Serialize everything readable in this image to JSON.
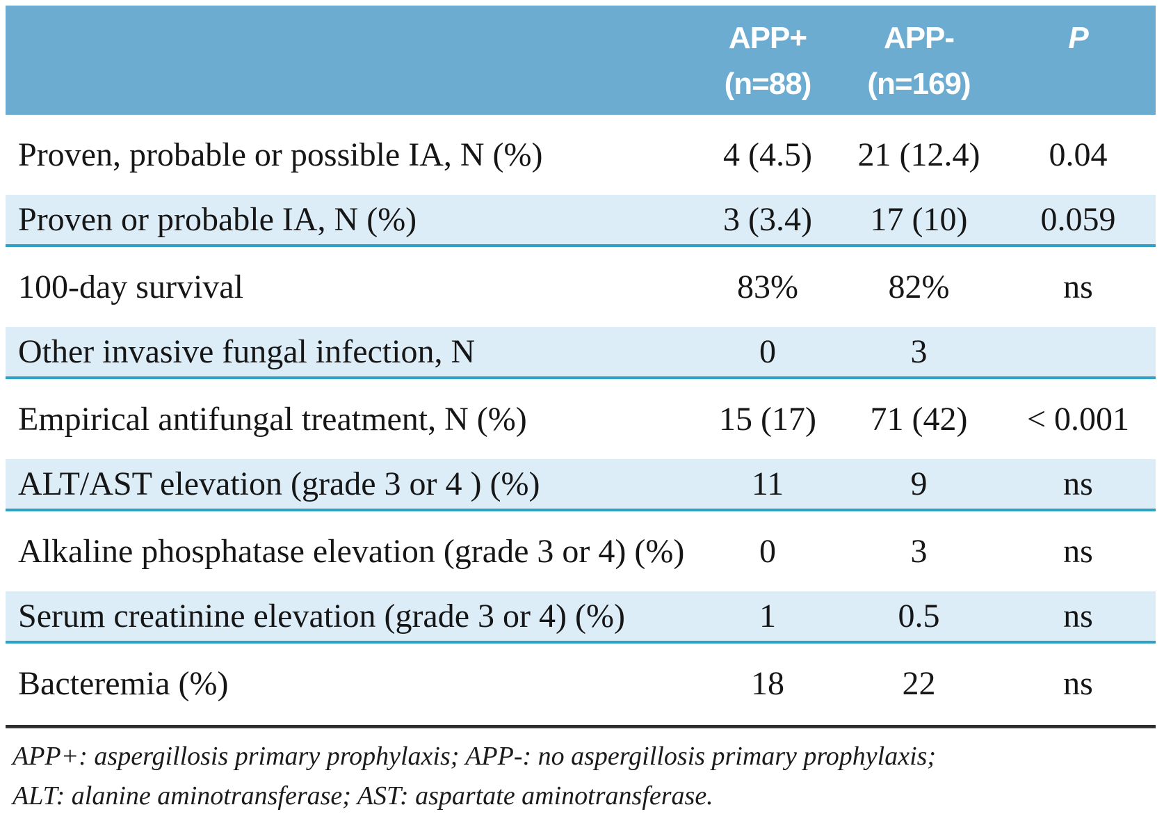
{
  "table": {
    "columns": {
      "app_plus": {
        "line1": "APP+",
        "line2": "(n=88)"
      },
      "app_minus": {
        "line1": "APP-",
        "line2": "(n=169)"
      },
      "p": "P"
    },
    "rows": [
      {
        "label": "Proven, probable or possible IA, N (%)",
        "app_plus": "4 (4.5)",
        "app_minus": "21 (12.4)",
        "p": "0.04"
      },
      {
        "label": "Proven or probable IA, N (%)",
        "app_plus": "3 (3.4)",
        "app_minus": "17 (10)",
        "p": "0.059"
      },
      {
        "label": "100-day survival",
        "app_plus": "83%",
        "app_minus": "82%",
        "p": "ns"
      },
      {
        "label": "Other invasive fungal infection, N",
        "app_plus": "0",
        "app_minus": "3",
        "p": ""
      },
      {
        "label": "Empirical antifungal treatment, N (%)",
        "app_plus": "15 (17)",
        "app_minus": "71 (42)",
        "p": "< 0.001"
      },
      {
        "label": "ALT/AST elevation (grade 3 or 4 ) (%)",
        "app_plus": "11",
        "app_minus": "9",
        "p": "ns"
      },
      {
        "label": "Alkaline phosphatase elevation (grade 3 or 4) (%)",
        "app_plus": "0",
        "app_minus": "3",
        "p": "ns"
      },
      {
        "label": "Serum creatinine elevation (grade 3 or 4) (%)",
        "app_plus": "1",
        "app_minus": "0.5",
        "p": "ns"
      },
      {
        "label": "Bacteremia (%)",
        "app_plus": "18",
        "app_minus": "22",
        "p": "ns"
      }
    ]
  },
  "footnote": {
    "line1": "APP+: aspergillosis primary prophylaxis; APP-: no aspergillosis primary prophylaxis;",
    "line2": "ALT: alanine aminotransferase; AST: aspartate aminotransferase."
  },
  "colors": {
    "header_bg": "#6CACD1",
    "header_text": "#FFFFFF",
    "highlight_row_bg": "#DCEDF8",
    "highlight_row_border": "#2EA1C4",
    "body_text": "#161616",
    "divider": "#2E2E2E"
  }
}
